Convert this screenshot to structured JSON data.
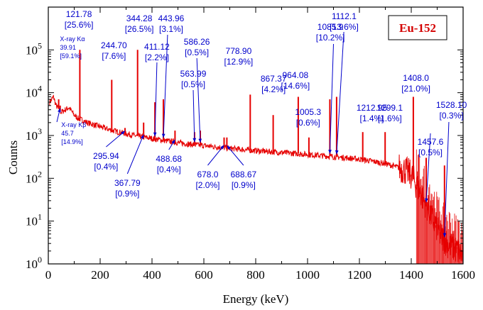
{
  "chart_data": {
    "type": "line",
    "title": "Eu-152",
    "xlabel": "Energy (keV)",
    "ylabel": "Counts",
    "xlim": [
      0,
      1600
    ],
    "ylim": [
      1,
      1000000
    ],
    "yscale": "log",
    "grid": false,
    "x_ticks": [
      "0",
      "200",
      "400",
      "600",
      "800",
      "1000",
      "1200",
      "1400",
      "1600"
    ],
    "y_ticks": [
      {
        "base": "10",
        "exp": "0"
      },
      {
        "base": "10",
        "exp": "1"
      },
      {
        "base": "10",
        "exp": "2"
      },
      {
        "base": "10",
        "exp": "3"
      },
      {
        "base": "10",
        "exp": "4"
      },
      {
        "base": "10",
        "exp": "5"
      }
    ],
    "series_color": "#e60000",
    "annotation_color": "#0000cc",
    "title_color": "#d40000",
    "continuum": [
      [
        5,
        6000
      ],
      [
        20,
        8000
      ],
      [
        30,
        5000
      ],
      [
        50,
        3500
      ],
      [
        80,
        4500
      ],
      [
        100,
        3000
      ],
      [
        115,
        2500
      ],
      [
        130,
        2300
      ],
      [
        150,
        2000
      ],
      [
        200,
        1600
      ],
      [
        250,
        1300
      ],
      [
        300,
        1100
      ],
      [
        350,
        950
      ],
      [
        400,
        850
      ],
      [
        450,
        760
      ],
      [
        500,
        680
      ],
      [
        550,
        620
      ],
      [
        600,
        580
      ],
      [
        650,
        540
      ],
      [
        700,
        500
      ],
      [
        750,
        470
      ],
      [
        800,
        440
      ],
      [
        850,
        420
      ],
      [
        900,
        400
      ],
      [
        950,
        380
      ],
      [
        1000,
        360
      ],
      [
        1050,
        340
      ],
      [
        1100,
        320
      ],
      [
        1150,
        300
      ],
      [
        1200,
        280
      ],
      [
        1250,
        250
      ],
      [
        1300,
        220
      ],
      [
        1350,
        180
      ],
      [
        1380,
        150
      ],
      [
        1400,
        120
      ],
      [
        1420,
        70
      ],
      [
        1450,
        30
      ],
      [
        1480,
        12
      ],
      [
        1510,
        5
      ],
      [
        1540,
        3
      ],
      [
        1580,
        2
      ],
      [
        1600,
        1.5
      ]
    ],
    "peaks": [
      {
        "energy": 39.91,
        "counts": 7000
      },
      {
        "energy": 45.7,
        "counts": 5000
      },
      {
        "energy": 121.78,
        "counts": 100000
      },
      {
        "energy": 244.7,
        "counts": 20000
      },
      {
        "energy": 295.94,
        "counts": 1500
      },
      {
        "energy": 344.28,
        "counts": 100000
      },
      {
        "energy": 367.79,
        "counts": 2000
      },
      {
        "energy": 411.12,
        "counts": 6000
      },
      {
        "energy": 443.96,
        "counts": 7000
      },
      {
        "energy": 488.68,
        "counts": 1300
      },
      {
        "energy": 563.99,
        "counts": 1200
      },
      {
        "energy": 586.26,
        "counts": 1300
      },
      {
        "energy": 678.0,
        "counts": 900
      },
      {
        "energy": 688.67,
        "counts": 900
      },
      {
        "energy": 778.9,
        "counts": 9000
      },
      {
        "energy": 867.37,
        "counts": 3000
      },
      {
        "energy": 964.08,
        "counts": 8000
      },
      {
        "energy": 1005.3,
        "counts": 900
      },
      {
        "energy": 1085.9,
        "counts": 7000
      },
      {
        "energy": 1112.1,
        "counts": 8000
      },
      {
        "energy": 1212.95,
        "counts": 1200
      },
      {
        "energy": 1299.1,
        "counts": 1200
      },
      {
        "energy": 1408.0,
        "counts": 8000
      },
      {
        "energy": 1457.6,
        "counts": 300
      },
      {
        "energy": 1528.1,
        "counts": 200
      }
    ],
    "annotations": [
      {
        "lines": [
          "121.78",
          "[25.6%]"
        ],
        "energy": 121.78,
        "leader": false
      },
      {
        "lines": [
          "244.70",
          "[7.6%]"
        ],
        "energy": 244.7,
        "leader": false
      },
      {
        "lines": [
          "344.28",
          "[26.5%]"
        ],
        "energy": 344.28,
        "leader": false
      },
      {
        "lines": [
          "411.12",
          "[2.2%]"
        ],
        "energy": 411.12,
        "leader": true
      },
      {
        "lines": [
          "443.96",
          "[3.1%]"
        ],
        "energy": 443.96,
        "leader": true
      },
      {
        "lines": [
          "586.26",
          "[0.5%]"
        ],
        "energy": 586.26,
        "leader": true
      },
      {
        "lines": [
          "778.90",
          "[12.9%]"
        ],
        "energy": 778.9,
        "leader": false
      },
      {
        "lines": [
          "1085.9",
          "[10.2%]"
        ],
        "energy": 1085.9,
        "leader": true
      },
      {
        "lines": [
          "1112.1",
          "[13.6%]"
        ],
        "energy": 1112.1,
        "leader": true
      },
      {
        "lines": [
          "964.08",
          "[14.6%]"
        ],
        "energy": 964.08,
        "leader": false
      },
      {
        "lines": [
          "867.37",
          "[4.2%]"
        ],
        "energy": 867.37,
        "leader": false
      },
      {
        "lines": [
          "563.99",
          "[0.5%]"
        ],
        "energy": 563.99,
        "leader": true
      },
      {
        "lines": [
          "1005.3",
          "[0.6%]"
        ],
        "energy": 1005.3,
        "leader": false
      },
      {
        "lines": [
          "1212.95",
          "[1.4%]"
        ],
        "energy": 1212.95,
        "leader": false
      },
      {
        "lines": [
          "1299.1",
          "[1.6%]"
        ],
        "energy": 1299.1,
        "leader": false
      },
      {
        "lines": [
          "1408.0",
          "[21.0%]"
        ],
        "energy": 1408.0,
        "leader": false
      },
      {
        "lines": [
          "1528.10",
          "[0.3%]"
        ],
        "energy": 1528.1,
        "leader": true
      },
      {
        "lines": [
          "1457.6",
          "[0.5%]"
        ],
        "energy": 1457.6,
        "leader": true
      },
      {
        "lines": [
          "X-ray Kα",
          "39.91",
          "[59.1%]"
        ],
        "energy": 39.91,
        "leader": false
      },
      {
        "lines": [
          "X-ray Kβ",
          "45.7",
          "[14.9%]"
        ],
        "energy": 45.7,
        "leader": true
      },
      {
        "lines": [
          "295.94",
          "[0.4%]"
        ],
        "energy": 295.94,
        "leader": true
      },
      {
        "lines": [
          "367.79",
          "[0.9%]"
        ],
        "energy": 367.79,
        "leader": true
      },
      {
        "lines": [
          "488.68",
          "[0.4%]"
        ],
        "energy": 488.68,
        "leader": true
      },
      {
        "lines": [
          "678.0",
          "[2.0%]"
        ],
        "energy": 678.0,
        "leader": true
      },
      {
        "lines": [
          "688.67",
          "[0.9%]"
        ],
        "energy": 688.67,
        "leader": true
      }
    ]
  }
}
